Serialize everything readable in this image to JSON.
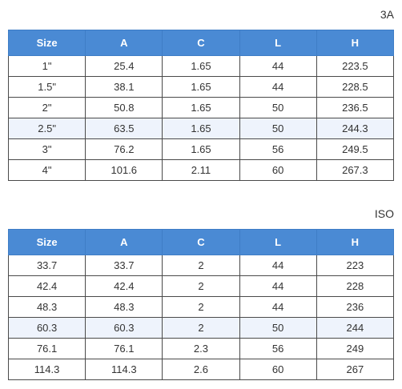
{
  "tables": [
    {
      "title": "3A",
      "headers": [
        "Size",
        "A",
        "C",
        "L",
        "H"
      ],
      "highlight_row": 3,
      "rows": [
        [
          "1\"",
          "25.4",
          "1.65",
          "44",
          "223.5"
        ],
        [
          "1.5\"",
          "38.1",
          "1.65",
          "44",
          "228.5"
        ],
        [
          "2\"",
          "50.8",
          "1.65",
          "50",
          "236.5"
        ],
        [
          "2.5\"",
          "63.5",
          "1.65",
          "50",
          "244.3"
        ],
        [
          "3\"",
          "76.2",
          "1.65",
          "56",
          "249.5"
        ],
        [
          "4\"",
          "101.6",
          "2.11",
          "60",
          "267.3"
        ]
      ]
    },
    {
      "title": "ISO",
      "headers": [
        "Size",
        "A",
        "C",
        "L",
        "H"
      ],
      "highlight_row": 3,
      "rows": [
        [
          "33.7",
          "33.7",
          "2",
          "44",
          "223"
        ],
        [
          "42.4",
          "42.4",
          "2",
          "44",
          "228"
        ],
        [
          "48.3",
          "48.3",
          "2",
          "44",
          "236"
        ],
        [
          "60.3",
          "60.3",
          "2",
          "50",
          "244"
        ],
        [
          "76.1",
          "76.1",
          "2.3",
          "56",
          "249"
        ],
        [
          "114.3",
          "114.3",
          "2.6",
          "60",
          "267"
        ]
      ]
    }
  ],
  "colors": {
    "header_bg": "#4a8ad4",
    "header_text": "#ffffff",
    "highlight_row_bg": "#eef3fc",
    "border": "#4a4a4a"
  }
}
